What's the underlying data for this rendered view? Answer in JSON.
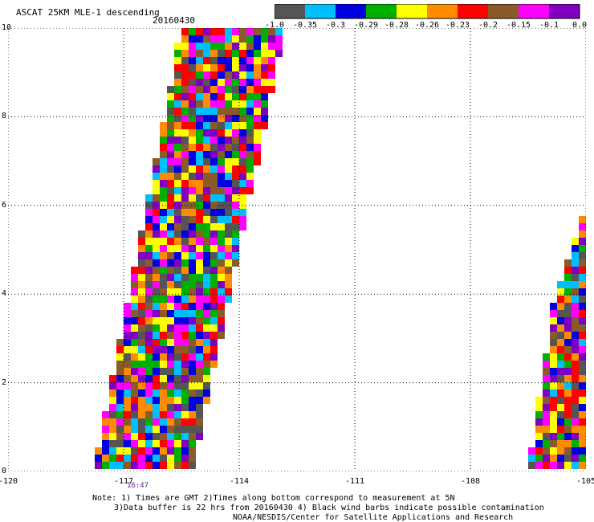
{
  "header": {
    "title": "ASCAT 25KM MLE-1 descending",
    "date": "20160430"
  },
  "legend": {
    "labels": [
      "-1.0",
      "-0.35",
      "-0.3",
      "-0.29",
      "-0.28",
      "-0.26",
      "-0.23",
      "-0.2",
      "-0.15",
      "-0.1",
      "0.0"
    ],
    "colors": [
      "#555555",
      "#00bfff",
      "#0000e0",
      "#00b000",
      "#ffff00",
      "#ff8c00",
      "#ff0000",
      "#8b5a2b",
      "#ff00ff",
      "#8000c0"
    ]
  },
  "chart_data": {
    "type": "heatmap",
    "title": "ASCAT 25KM MLE-1 descending",
    "x_ticks": [
      "-120",
      "-117",
      "-114",
      "-111",
      "-108",
      "-105"
    ],
    "y_ticks": [
      "0",
      "2",
      "4",
      "6",
      "8",
      "10"
    ],
    "xlim": [
      -120,
      -105
    ],
    "ylim": [
      0,
      10
    ],
    "grid": true,
    "colorbar_position": "top-right",
    "swaths": [
      {
        "corners": [
          [
            -117.8,
            0
          ],
          [
            -115.2,
            0
          ],
          [
            -112.8,
            10
          ],
          [
            -115.5,
            10
          ]
        ]
      },
      {
        "corners": [
          [
            -106.5,
            0
          ],
          [
            -105,
            0
          ],
          [
            -105,
            6
          ],
          [
            -105.8,
            4
          ]
        ]
      }
    ]
  },
  "time_label": "16:47",
  "footer": {
    "line1": "Note: 1) Times are GMT 2)Times along bottom correspond to measurement at 5N",
    "line2": "3)Data buffer is 22 hrs from 20160430 4) Black wind barbs indicate possible contamination",
    "line3": "NOAA/NESDIS/Center for Satellite Applications and Research"
  }
}
